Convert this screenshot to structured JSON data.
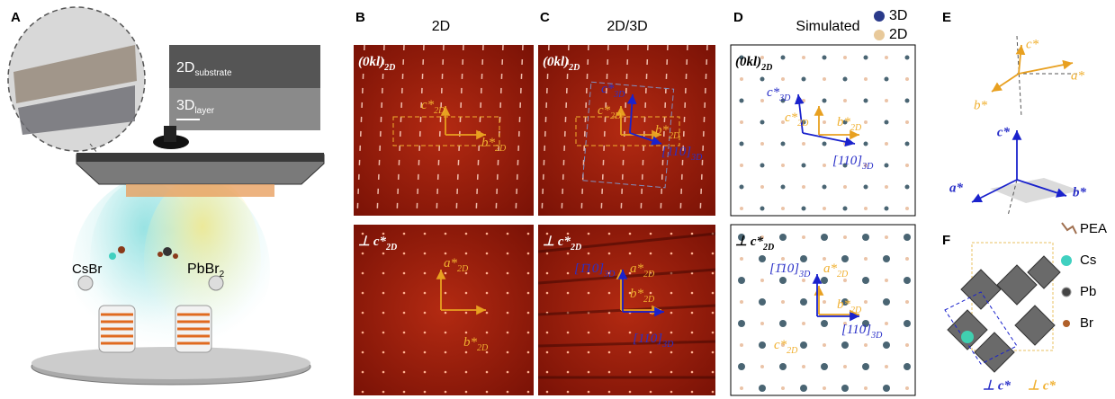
{
  "panel_labels": [
    "A",
    "B",
    "C",
    "D",
    "E",
    "F"
  ],
  "panel_a": {
    "substrate": [
      "2D",
      "substrate"
    ],
    "layer": [
      "3D",
      "layer"
    ],
    "precursor_left": "CsBr",
    "precursor_right": [
      "PbBr",
      "2"
    ]
  },
  "column_titles": {
    "b": "2D",
    "c": "2D/3D",
    "d": "Simulated"
  },
  "legend": [
    "3D",
    "2D"
  ],
  "zone_top": [
    "(0kl)",
    "2D"
  ],
  "zone_bottom": [
    "⊥ c*",
    "2D"
  ],
  "axes": {
    "c2d": [
      "c*",
      "2D"
    ],
    "b2d": [
      "b*",
      "2D"
    ],
    "a2d": [
      "a*",
      "2D"
    ],
    "c3d": [
      "c*",
      "3D"
    ],
    "v110": [
      "[110]",
      "3D"
    ],
    "m110": [
      "[1̄10]",
      "3D"
    ]
  },
  "panel_e": {
    "c": "c*",
    "a": "a*",
    "b": "b*"
  },
  "panel_f": {
    "legend": [
      "PEA",
      "Cs",
      "Pb",
      "Br"
    ],
    "perp": [
      "⊥ c*",
      "⊥ c*"
    ]
  }
}
